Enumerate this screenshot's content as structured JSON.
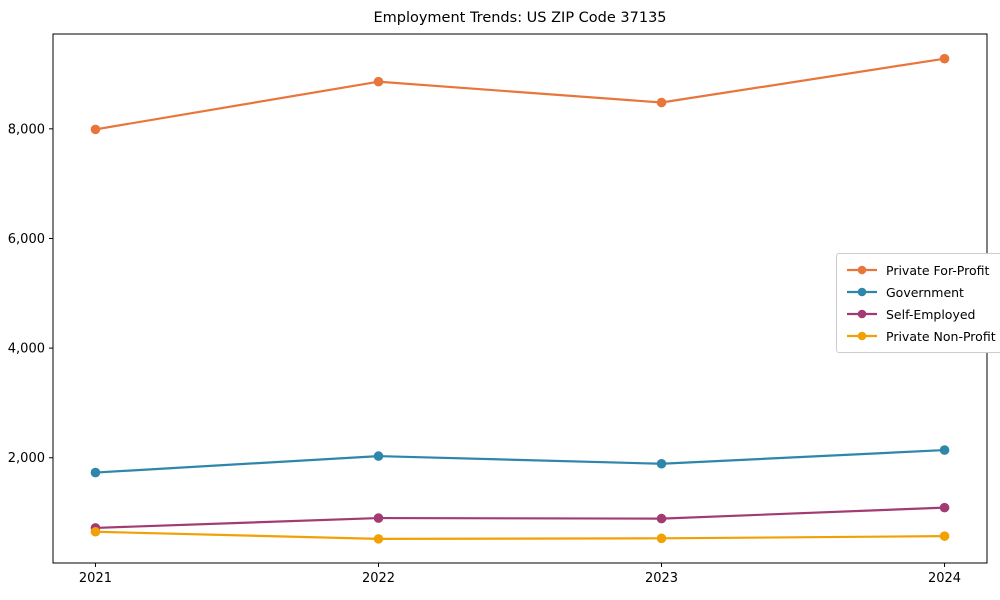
{
  "figure": {
    "title": "Employment Trends: US ZIP Code 37135",
    "background_color": "#ffffff",
    "spine_color": "#000000",
    "text_color": "#000000"
  },
  "chart_data": {
    "type": "line",
    "title": "Employment Trends: US ZIP Code 37135",
    "categories": [
      "2021",
      "2022",
      "2023",
      "2024"
    ],
    "series": [
      {
        "name": "Private For-Profit",
        "color": "#e8763b",
        "values": [
          7990,
          8860,
          8480,
          9280
        ]
      },
      {
        "name": "Government",
        "color": "#2e86ab",
        "values": [
          1730,
          2030,
          1890,
          2140
        ]
      },
      {
        "name": "Self-Employed",
        "color": "#a23b72",
        "values": [
          720,
          900,
          890,
          1090
        ]
      },
      {
        "name": "Private Non-Profit",
        "color": "#f2a104",
        "values": [
          650,
          520,
          530,
          570
        ]
      }
    ],
    "xlabel": "",
    "ylabel": "",
    "ylim": [
      80,
      9730
    ],
    "yticks": [
      2000,
      4000,
      6000,
      8000
    ],
    "ytick_labels": [
      "2,000",
      "4,000",
      "6,000",
      "8,000"
    ],
    "grid": false,
    "legend": {
      "position": "center-right",
      "border_color": "#cccccc",
      "background": "#ffffff"
    },
    "marker": "circle"
  }
}
